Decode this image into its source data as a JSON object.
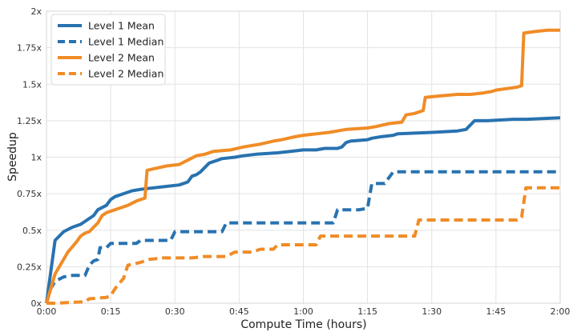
{
  "chart_data": {
    "type": "line",
    "title": "",
    "xlabel": "Compute Time (hours)",
    "ylabel": "Speedup",
    "xlim": [
      0,
      120
    ],
    "ylim": [
      0,
      2
    ],
    "grid": true,
    "legend_position": "top-left",
    "x_ticks": [
      {
        "value": 0,
        "label": "0:00"
      },
      {
        "value": 15,
        "label": "0:15"
      },
      {
        "value": 30,
        "label": "0:30"
      },
      {
        "value": 45,
        "label": "0:45"
      },
      {
        "value": 60,
        "label": "1:00"
      },
      {
        "value": 75,
        "label": "1:15"
      },
      {
        "value": 90,
        "label": "1:30"
      },
      {
        "value": 105,
        "label": "1:45"
      },
      {
        "value": 120,
        "label": "2:00"
      }
    ],
    "y_ticks": [
      {
        "value": 0,
        "label": "0x"
      },
      {
        "value": 0.25,
        "label": "0.25x"
      },
      {
        "value": 0.5,
        "label": "0.5x"
      },
      {
        "value": 0.75,
        "label": "0.75x"
      },
      {
        "value": 1,
        "label": "1x"
      },
      {
        "value": 1.25,
        "label": "1.25x"
      },
      {
        "value": 1.5,
        "label": "1.5x"
      },
      {
        "value": 1.75,
        "label": "1.75x"
      },
      {
        "value": 2,
        "label": "2x"
      }
    ],
    "series": [
      {
        "name": "Level 1 Mean",
        "color": "#2872b0",
        "dash": "solid",
        "points": [
          [
            0,
            0
          ],
          [
            2,
            0.43
          ],
          [
            4,
            0.49
          ],
          [
            6,
            0.52
          ],
          [
            8,
            0.54
          ],
          [
            10,
            0.58
          ],
          [
            11,
            0.6
          ],
          [
            12,
            0.64
          ],
          [
            14,
            0.67
          ],
          [
            15,
            0.71
          ],
          [
            16,
            0.73
          ],
          [
            18,
            0.75
          ],
          [
            20,
            0.77
          ],
          [
            22,
            0.78
          ],
          [
            25,
            0.79
          ],
          [
            28,
            0.8
          ],
          [
            31,
            0.81
          ],
          [
            32,
            0.82
          ],
          [
            33,
            0.83
          ],
          [
            34,
            0.87
          ],
          [
            35,
            0.88
          ],
          [
            36,
            0.9
          ],
          [
            37,
            0.93
          ],
          [
            38,
            0.96
          ],
          [
            40,
            0.98
          ],
          [
            41,
            0.99
          ],
          [
            44,
            1.0
          ],
          [
            46,
            1.01
          ],
          [
            49,
            1.02
          ],
          [
            54,
            1.03
          ],
          [
            57,
            1.04
          ],
          [
            60,
            1.05
          ],
          [
            63,
            1.05
          ],
          [
            65,
            1.06
          ],
          [
            68,
            1.06
          ],
          [
            69,
            1.07
          ],
          [
            70,
            1.1
          ],
          [
            71,
            1.11
          ],
          [
            75,
            1.12
          ],
          [
            76,
            1.13
          ],
          [
            78,
            1.14
          ],
          [
            81,
            1.15
          ],
          [
            82,
            1.16
          ],
          [
            90,
            1.17
          ],
          [
            96,
            1.18
          ],
          [
            98,
            1.19
          ],
          [
            100,
            1.25
          ],
          [
            103,
            1.25
          ],
          [
            109,
            1.26
          ],
          [
            112,
            1.26
          ],
          [
            120,
            1.27
          ]
        ]
      },
      {
        "name": "Level 1 Median",
        "color": "#2872b0",
        "dash": "dashed",
        "points": [
          [
            0,
            0
          ],
          [
            1,
            0.1
          ],
          [
            2,
            0.15
          ],
          [
            4,
            0.18
          ],
          [
            6,
            0.19
          ],
          [
            9,
            0.19
          ],
          [
            10,
            0.26
          ],
          [
            11,
            0.29
          ],
          [
            12,
            0.3
          ],
          [
            12.5,
            0.38
          ],
          [
            14,
            0.38
          ],
          [
            15,
            0.41
          ],
          [
            21,
            0.41
          ],
          [
            22,
            0.43
          ],
          [
            29,
            0.43
          ],
          [
            30,
            0.49
          ],
          [
            41,
            0.49
          ],
          [
            42,
            0.55
          ],
          [
            67,
            0.55
          ],
          [
            68,
            0.64
          ],
          [
            73,
            0.64
          ],
          [
            75,
            0.65
          ],
          [
            76,
            0.82
          ],
          [
            79,
            0.82
          ],
          [
            81,
            0.9
          ],
          [
            120,
            0.9
          ]
        ]
      },
      {
        "name": "Level 2 Mean",
        "color": "#f08c26",
        "dash": "solid",
        "points": [
          [
            0,
            0
          ],
          [
            2,
            0.2
          ],
          [
            3,
            0.25
          ],
          [
            5,
            0.35
          ],
          [
            7,
            0.42
          ],
          [
            8,
            0.46
          ],
          [
            9,
            0.48
          ],
          [
            10,
            0.49
          ],
          [
            12,
            0.55
          ],
          [
            13,
            0.6
          ],
          [
            14,
            0.62
          ],
          [
            15,
            0.63
          ],
          [
            17,
            0.65
          ],
          [
            19,
            0.67
          ],
          [
            21,
            0.7
          ],
          [
            22,
            0.71
          ],
          [
            23,
            0.72
          ],
          [
            23.5,
            0.91
          ],
          [
            25,
            0.92
          ],
          [
            28,
            0.94
          ],
          [
            31,
            0.95
          ],
          [
            33,
            0.98
          ],
          [
            35,
            1.01
          ],
          [
            37,
            1.02
          ],
          [
            39,
            1.04
          ],
          [
            43,
            1.05
          ],
          [
            46,
            1.07
          ],
          [
            50,
            1.09
          ],
          [
            53,
            1.11
          ],
          [
            55,
            1.12
          ],
          [
            58,
            1.14
          ],
          [
            60,
            1.15
          ],
          [
            63,
            1.16
          ],
          [
            66,
            1.17
          ],
          [
            70,
            1.19
          ],
          [
            75,
            1.2
          ],
          [
            77,
            1.21
          ],
          [
            80,
            1.23
          ],
          [
            83,
            1.24
          ],
          [
            84,
            1.29
          ],
          [
            86,
            1.3
          ],
          [
            88,
            1.32
          ],
          [
            88.5,
            1.41
          ],
          [
            92,
            1.42
          ],
          [
            96,
            1.43
          ],
          [
            99,
            1.43
          ],
          [
            102,
            1.44
          ],
          [
            104,
            1.45
          ],
          [
            105,
            1.46
          ],
          [
            110,
            1.48
          ],
          [
            111,
            1.49
          ],
          [
            111.5,
            1.85
          ],
          [
            114,
            1.86
          ],
          [
            117,
            1.87
          ],
          [
            120,
            1.87
          ]
        ]
      },
      {
        "name": "Level 2 Median",
        "color": "#f08c26",
        "dash": "dashed",
        "points": [
          [
            0,
            0
          ],
          [
            2,
            0
          ],
          [
            9,
            0.01
          ],
          [
            10,
            0.03
          ],
          [
            14,
            0.04
          ],
          [
            15,
            0.05
          ],
          [
            16,
            0.1
          ],
          [
            18,
            0.17
          ],
          [
            19,
            0.26
          ],
          [
            22,
            0.28
          ],
          [
            24,
            0.3
          ],
          [
            27,
            0.31
          ],
          [
            34,
            0.31
          ],
          [
            37,
            0.32
          ],
          [
            42,
            0.32
          ],
          [
            44,
            0.35
          ],
          [
            48,
            0.35
          ],
          [
            50,
            0.37
          ],
          [
            53,
            0.37
          ],
          [
            54,
            0.4
          ],
          [
            63,
            0.4
          ],
          [
            64,
            0.46
          ],
          [
            86,
            0.46
          ],
          [
            87,
            0.57
          ],
          [
            110,
            0.57
          ],
          [
            111,
            0.59
          ],
          [
            112,
            0.79
          ],
          [
            120,
            0.79
          ]
        ]
      }
    ]
  }
}
